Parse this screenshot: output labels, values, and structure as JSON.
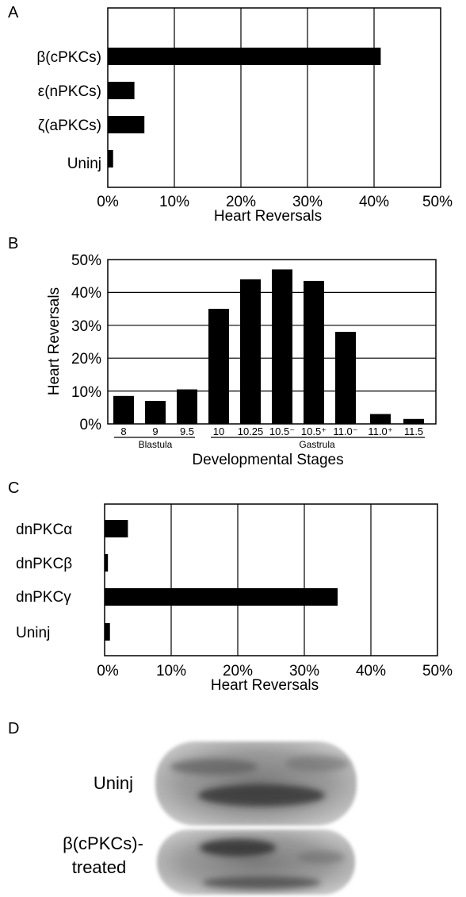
{
  "panels": [
    {
      "label": "A",
      "chart_data": {
        "type": "bar",
        "orientation": "horizontal",
        "categories": [
          "β(cPKCs)",
          "ε(nPKCs)",
          "ζ(aPKCs)",
          "Uninj"
        ],
        "values": [
          41,
          4,
          5.5,
          0.8
        ],
        "xlabel": "Heart Reversals",
        "xlim": [
          0,
          50
        ],
        "xticks": [
          "0%",
          "10%",
          "20%",
          "30%",
          "40%",
          "50%"
        ],
        "grid": "vertical",
        "color": "#000000"
      }
    },
    {
      "label": "B",
      "chart_data": {
        "type": "bar",
        "orientation": "vertical",
        "categories": [
          "8",
          "9",
          "9.5",
          "10",
          "10.25",
          "10.5⁻",
          "10.5⁺",
          "11.0⁻",
          "11.0⁺",
          "11.5"
        ],
        "values": [
          8.5,
          7,
          10.5,
          35,
          44,
          47,
          43.5,
          28,
          3,
          1.5
        ],
        "xlabel": "Developmental Stages",
        "ylabel": "Heart Reversals",
        "ylim": [
          0,
          50
        ],
        "yticks": [
          "0%",
          "10%",
          "20%",
          "30%",
          "40%",
          "50%"
        ],
        "groups": [
          {
            "name": "Blastula",
            "from": 0,
            "to": 2
          },
          {
            "name": "Gastrula",
            "from": 3,
            "to": 9
          }
        ],
        "grid": "horizontal",
        "color": "#000000"
      }
    },
    {
      "label": "C",
      "chart_data": {
        "type": "bar",
        "orientation": "horizontal",
        "categories": [
          "dnPKCα",
          "dnPKCβ",
          "dnPKCγ",
          "Uninj"
        ],
        "values": [
          3.5,
          0.5,
          35,
          0.8
        ],
        "xlabel": "Heart Reversals",
        "xlim": [
          0,
          50
        ],
        "xticks": [
          "0%",
          "10%",
          "20%",
          "30%",
          "40%",
          "50%"
        ],
        "grid": "vertical",
        "color": "#000000"
      }
    }
  ],
  "panel_d": {
    "label": "D",
    "embryos": [
      {
        "label_lines": [
          "Uninj"
        ]
      },
      {
        "label_lines": [
          "β(cPKCs)-",
          "treated"
        ]
      }
    ]
  }
}
